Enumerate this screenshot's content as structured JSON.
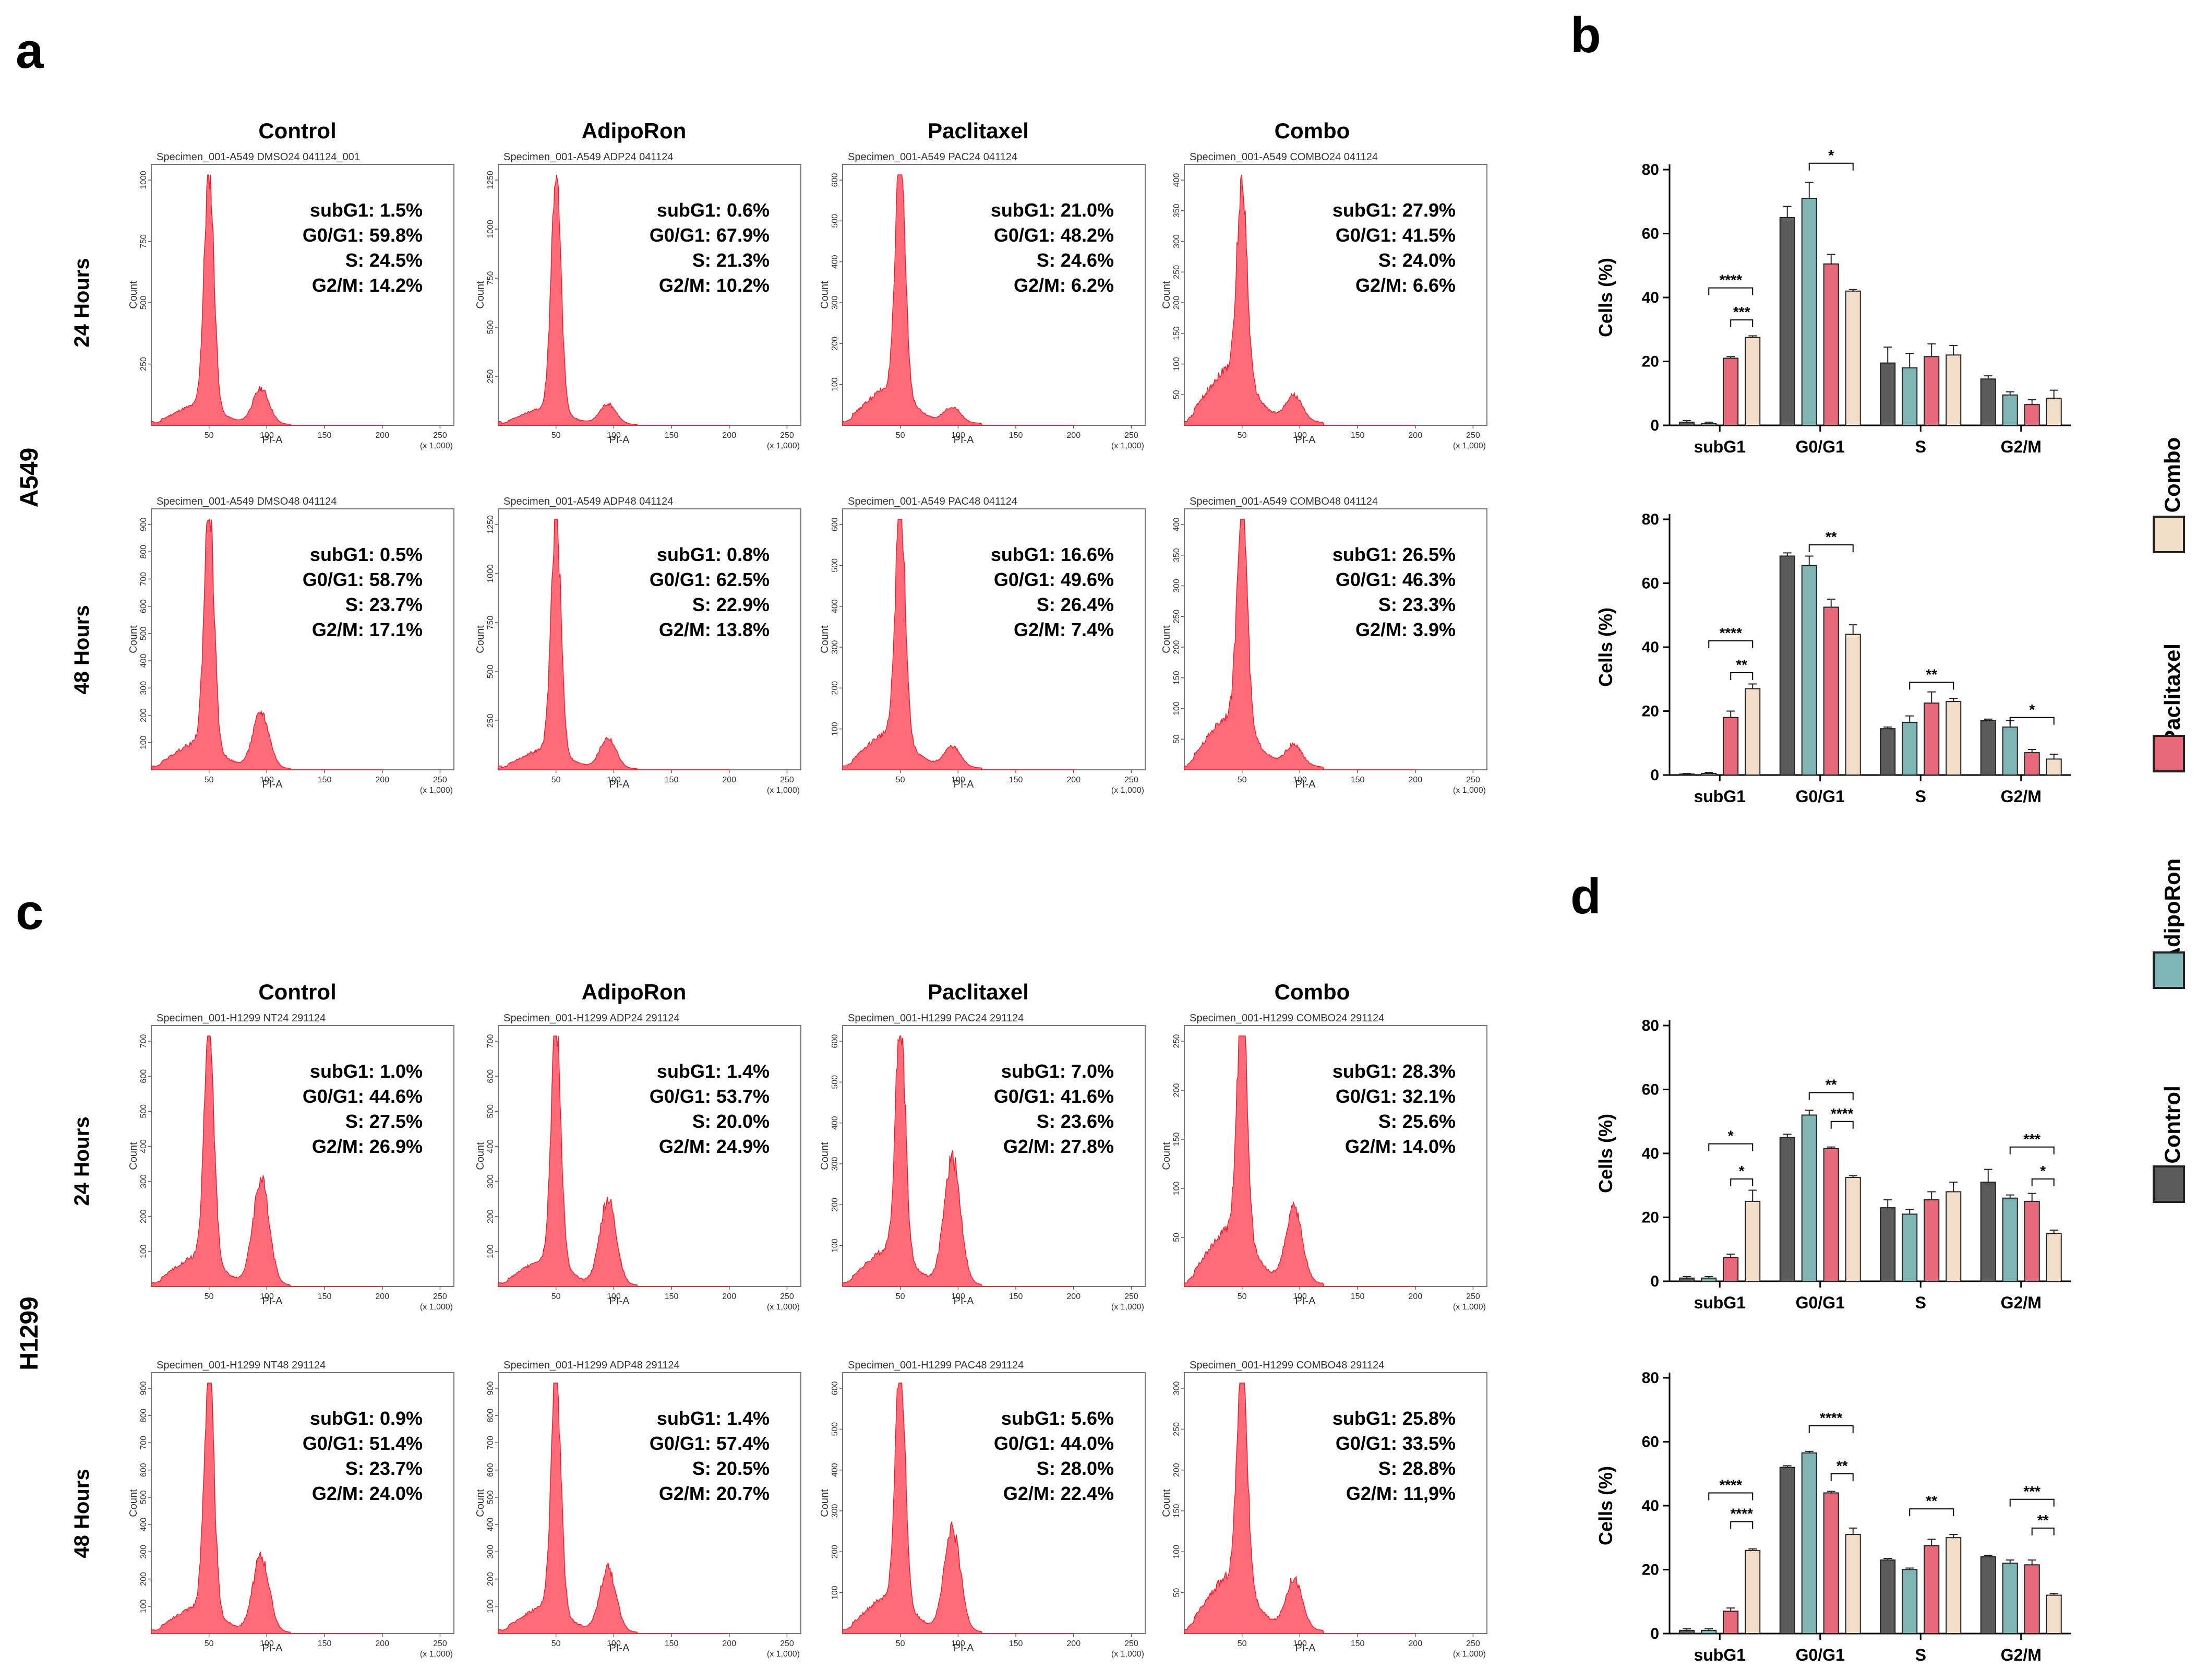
{
  "figure": {
    "panel_letters": [
      "a",
      "b",
      "c",
      "d"
    ],
    "columns": [
      "Control",
      "AdipoRon",
      "Paclitaxel",
      "Combo"
    ],
    "time_labels": [
      "24 Hours",
      "48 Hours"
    ],
    "cell_lines": [
      "A549",
      "H1299"
    ],
    "hist_axis": {
      "xlabel": "PI-A",
      "xscale": "(x 1,000)",
      "ylabel": "Count",
      "xticks": [
        "50",
        "100",
        "150",
        "200",
        "250"
      ]
    },
    "stat_labels": [
      "subG1",
      "G0/G1",
      "S",
      "G2/M"
    ]
  },
  "chart_data": {
    "histograms": [
      {
        "cell_line": "A549",
        "time": "24 Hours",
        "condition": "Control",
        "specimen": "Specimen_001-A549 DMSO24 041124_001",
        "ymax": 1000,
        "yticks": [
          250,
          500,
          750,
          1000
        ],
        "stats": [
          "1.5%",
          "59.8%",
          "24.5%",
          "14.2%"
        ],
        "g1_peak": 0.95,
        "g2_peak": 0.14,
        "spread": 0.3
      },
      {
        "cell_line": "A549",
        "time": "24 Hours",
        "condition": "AdipoRon",
        "specimen": "Specimen_001-A549 ADP24 041124",
        "ymax": 1250,
        "yticks": [
          250,
          500,
          750,
          1000,
          1250
        ],
        "stats": [
          "0.6%",
          "67.9%",
          "21.3%",
          "10.2%"
        ],
        "g1_peak": 0.95,
        "g2_peak": 0.08,
        "spread": 0.25
      },
      {
        "cell_line": "A549",
        "time": "24 Hours",
        "condition": "Paclitaxel",
        "specimen": "Specimen_001-A549 PAC24 041124",
        "ymax": 600,
        "yticks": [
          100,
          200,
          300,
          400,
          500,
          600
        ],
        "stats": [
          "21.0%",
          "48.2%",
          "24.6%",
          "6.2%"
        ],
        "g1_peak": 0.95,
        "g2_peak": 0.06,
        "spread": 0.55
      },
      {
        "cell_line": "A549",
        "time": "24 Hours",
        "condition": "Combo",
        "specimen": "Specimen_001-A549 COMBO24 041124",
        "ymax": 400,
        "yticks": [
          50,
          100,
          150,
          200,
          250,
          300,
          350,
          400
        ],
        "stats": [
          "27.9%",
          "41.5%",
          "24.0%",
          "6.6%"
        ],
        "g1_peak": 0.78,
        "g2_peak": 0.1,
        "spread": 0.85
      },
      {
        "cell_line": "A549",
        "time": "48 Hours",
        "condition": "Control",
        "specimen": "Specimen_001-A549 DMSO48 041124",
        "ymax": 900,
        "yticks": [
          100,
          200,
          300,
          400,
          500,
          600,
          700,
          800,
          900
        ],
        "stats": [
          "0.5%",
          "58.7%",
          "23.7%",
          "17.1%"
        ],
        "g1_peak": 0.97,
        "g2_peak": 0.22,
        "spread": 0.4
      },
      {
        "cell_line": "A549",
        "time": "48 Hours",
        "condition": "AdipoRon",
        "specimen": "Specimen_001-A549 ADP48 041124",
        "ymax": 1250,
        "yticks": [
          250,
          500,
          750,
          1000,
          1250
        ],
        "stats": [
          "0.8%",
          "62.5%",
          "22.9%",
          "13.8%"
        ],
        "g1_peak": 0.95,
        "g2_peak": 0.12,
        "spread": 0.3
      },
      {
        "cell_line": "A549",
        "time": "48 Hours",
        "condition": "Paclitaxel",
        "specimen": "Specimen_001-A549 PAC48 041124",
        "ymax": 600,
        "yticks": [
          100,
          200,
          300,
          400,
          500,
          600
        ],
        "stats": [
          "16.6%",
          "49.6%",
          "26.4%",
          "7.4%"
        ],
        "g1_peak": 0.95,
        "g2_peak": 0.08,
        "spread": 0.55
      },
      {
        "cell_line": "A549",
        "time": "48 Hours",
        "condition": "Combo",
        "specimen": "Specimen_001-A549 COMBO48 041124",
        "ymax": 400,
        "yticks": [
          50,
          100,
          150,
          200,
          250,
          300,
          350,
          400
        ],
        "stats": [
          "26.5%",
          "46.3%",
          "23.3%",
          "3.9%"
        ],
        "g1_peak": 0.92,
        "g2_peak": 0.08,
        "spread": 0.8
      },
      {
        "cell_line": "H1299",
        "time": "24 Hours",
        "condition": "Control",
        "specimen": "Specimen_001-H1299 NT24 291124",
        "ymax": 700,
        "yticks": [
          100,
          200,
          300,
          400,
          500,
          600,
          700
        ],
        "stats": [
          "1.0%",
          "44.6%",
          "27.5%",
          "26.9%"
        ],
        "g1_peak": 0.95,
        "g2_peak": 0.42,
        "spread": 0.45
      },
      {
        "cell_line": "H1299",
        "time": "24 Hours",
        "condition": "AdipoRon",
        "specimen": "Specimen_001-H1299 ADP24 291124",
        "ymax": 700,
        "yticks": [
          100,
          200,
          300,
          400,
          500,
          600,
          700
        ],
        "stats": [
          "1.4%",
          "53.7%",
          "20.0%",
          "24.9%"
        ],
        "g1_peak": 0.95,
        "g2_peak": 0.34,
        "spread": 0.4
      },
      {
        "cell_line": "H1299",
        "time": "24 Hours",
        "condition": "Paclitaxel",
        "specimen": "Specimen_001-H1299 PAC24 291124",
        "ymax": 600,
        "yticks": [
          100,
          200,
          300,
          400,
          500,
          600
        ],
        "stats": [
          "7.0%",
          "41.6%",
          "23.6%",
          "27.8%"
        ],
        "g1_peak": 0.95,
        "g2_peak": 0.5,
        "spread": 0.55
      },
      {
        "cell_line": "H1299",
        "time": "24 Hours",
        "condition": "Combo",
        "specimen": "Specimen_001-H1299 COMBO24 291124",
        "ymax": 250,
        "yticks": [
          50,
          100,
          150,
          200,
          250
        ],
        "stats": [
          "28.3%",
          "32.1%",
          "25.6%",
          "14.0%"
        ],
        "g1_peak": 0.96,
        "g2_peak": 0.3,
        "spread": 0.85
      },
      {
        "cell_line": "H1299",
        "time": "48 Hours",
        "condition": "Control",
        "specimen": "Specimen_001-H1299 NT48 291124",
        "ymax": 900,
        "yticks": [
          100,
          200,
          300,
          400,
          500,
          600,
          700,
          800,
          900
        ],
        "stats": [
          "0.9%",
          "51.4%",
          "23.7%",
          "24.0%"
        ],
        "g1_peak": 0.97,
        "g2_peak": 0.3,
        "spread": 0.4
      },
      {
        "cell_line": "H1299",
        "time": "48 Hours",
        "condition": "AdipoRon",
        "specimen": "Specimen_001-H1299 ADP48 291124",
        "ymax": 900,
        "yticks": [
          100,
          200,
          300,
          400,
          500,
          600,
          700,
          800,
          900
        ],
        "stats": [
          "1.4%",
          "57.4%",
          "20.5%",
          "20.7%"
        ],
        "g1_peak": 0.95,
        "g2_peak": 0.25,
        "spread": 0.4
      },
      {
        "cell_line": "H1299",
        "time": "48 Hours",
        "condition": "Paclitaxel",
        "specimen": "Specimen_001-H1299 PAC48 291124",
        "ymax": 600,
        "yticks": [
          100,
          200,
          300,
          400,
          500,
          600
        ],
        "stats": [
          "5.6%",
          "44.0%",
          "28.0%",
          "22.4%"
        ],
        "g1_peak": 0.96,
        "g2_peak": 0.4,
        "spread": 0.55
      },
      {
        "cell_line": "H1299",
        "time": "48 Hours",
        "condition": "Combo",
        "specimen": "Specimen_001-H1299 COMBO48 291124",
        "ymax": 300,
        "yticks": [
          50,
          100,
          150,
          200,
          250,
          300
        ],
        "stats": [
          "25.8%",
          "33.5%",
          "28.8%",
          "11,9%"
        ],
        "g1_peak": 0.95,
        "g2_peak": 0.2,
        "spread": 0.85
      }
    ],
    "bar_charts": [
      {
        "panel": "b",
        "cell_line": "A549",
        "time": "24 Hours",
        "type": "bar",
        "ylabel": "Cells (%)",
        "ylim": [
          0,
          80
        ],
        "yticks": [
          0,
          20,
          40,
          60,
          80
        ],
        "categories": [
          "subG1",
          "G0/G1",
          "S",
          "G2/M"
        ],
        "series": [
          {
            "name": "Control",
            "values": [
              1,
              65,
              19.5,
              14.5
            ],
            "errors": [
              0.5,
              3.5,
              5,
              1
            ]
          },
          {
            "name": "AdipoRon",
            "values": [
              0.5,
              71,
              18,
              9.5
            ],
            "errors": [
              0.5,
              5,
              4.5,
              1
            ]
          },
          {
            "name": "Paclitaxel",
            "values": [
              21,
              50.5,
              21.5,
              6.5
            ],
            "errors": [
              0.5,
              3,
              4,
              1.5
            ]
          },
          {
            "name": "Combo",
            "values": [
              27.5,
              42,
              22,
              8.5
            ],
            "errors": [
              0.5,
              0.5,
              3,
              2.5
            ]
          }
        ],
        "significance": [
          {
            "cat": 0,
            "from": 1,
            "to": 3,
            "label": "****",
            "y": 43
          },
          {
            "cat": 0,
            "from": 2,
            "to": 3,
            "label": "***",
            "y": 33
          },
          {
            "cat": 1,
            "from": 1,
            "to": 3,
            "label": "*",
            "y": 82
          }
        ]
      },
      {
        "panel": "b",
        "cell_line": "A549",
        "time": "48 Hours",
        "type": "bar",
        "ylabel": "Cells (%)",
        "ylim": [
          0,
          80
        ],
        "yticks": [
          0,
          20,
          40,
          60,
          80
        ],
        "categories": [
          "subG1",
          "G0/G1",
          "S",
          "G2/M"
        ],
        "series": [
          {
            "name": "Control",
            "values": [
              0.3,
              68.5,
              14.5,
              17
            ],
            "errors": [
              0.2,
              1,
              0.5,
              0.5
            ]
          },
          {
            "name": "AdipoRon",
            "values": [
              0.5,
              65.5,
              16.5,
              15
            ],
            "errors": [
              0.3,
              3,
              2,
              2
            ]
          },
          {
            "name": "Paclitaxel",
            "values": [
              18,
              52.5,
              22.5,
              7
            ],
            "errors": [
              2,
              2.5,
              3.5,
              1
            ]
          },
          {
            "name": "Combo",
            "values": [
              27,
              44,
              23,
              5
            ],
            "errors": [
              1.5,
              3,
              1,
              1.5
            ]
          }
        ],
        "significance": [
          {
            "cat": 0,
            "from": 1,
            "to": 3,
            "label": "****",
            "y": 42
          },
          {
            "cat": 0,
            "from": 2,
            "to": 3,
            "label": "**",
            "y": 32
          },
          {
            "cat": 1,
            "from": 1,
            "to": 3,
            "label": "**",
            "y": 72
          },
          {
            "cat": 2,
            "from": 1,
            "to": 3,
            "label": "**",
            "y": 29
          },
          {
            "cat": 3,
            "from": 1,
            "to": 3,
            "label": "*",
            "y": 18
          }
        ]
      },
      {
        "panel": "d",
        "cell_line": "H1299",
        "time": "24 Hours",
        "type": "bar",
        "ylabel": "Cells (%)",
        "ylim": [
          0,
          80
        ],
        "yticks": [
          0,
          20,
          40,
          60,
          80
        ],
        "categories": [
          "subG1",
          "G0/G1",
          "S",
          "G2/M"
        ],
        "series": [
          {
            "name": "Control",
            "values": [
              1,
              45,
              23,
              31
            ],
            "errors": [
              0.5,
              1,
              2.5,
              4
            ]
          },
          {
            "name": "AdipoRon",
            "values": [
              1,
              52,
              21,
              26
            ],
            "errors": [
              0.5,
              1.5,
              1.5,
              1
            ]
          },
          {
            "name": "Paclitaxel",
            "values": [
              7.5,
              41.5,
              25.5,
              25
            ],
            "errors": [
              1,
              0.5,
              2.5,
              2.5
            ]
          },
          {
            "name": "Combo",
            "values": [
              25,
              32.5,
              28,
              15
            ],
            "errors": [
              3.5,
              0.5,
              3,
              1
            ]
          }
        ],
        "significance": [
          {
            "cat": 0,
            "from": 1,
            "to": 3,
            "label": "*",
            "y": 43
          },
          {
            "cat": 0,
            "from": 2,
            "to": 3,
            "label": "*",
            "y": 32
          },
          {
            "cat": 1,
            "from": 1,
            "to": 3,
            "label": "**",
            "y": 59
          },
          {
            "cat": 1,
            "from": 2,
            "to": 3,
            "label": "****",
            "y": 50
          },
          {
            "cat": 3,
            "from": 1,
            "to": 3,
            "label": "***",
            "y": 42
          },
          {
            "cat": 3,
            "from": 2,
            "to": 3,
            "label": "*",
            "y": 32
          }
        ]
      },
      {
        "panel": "d",
        "cell_line": "H1299",
        "time": "48 Hours",
        "type": "bar",
        "ylabel": "Cells (%)",
        "ylim": [
          0,
          80
        ],
        "yticks": [
          0,
          20,
          40,
          60,
          80
        ],
        "categories": [
          "subG1",
          "G0/G1",
          "S",
          "G2/M"
        ],
        "series": [
          {
            "name": "Control",
            "values": [
              1,
              52,
              23,
              24
            ],
            "errors": [
              0.5,
              0.5,
              0.5,
              0.5
            ]
          },
          {
            "name": "AdipoRon",
            "values": [
              1,
              56.5,
              20,
              22
            ],
            "errors": [
              0.5,
              0.5,
              0.5,
              1
            ]
          },
          {
            "name": "Paclitaxel",
            "values": [
              7,
              44,
              27.5,
              21.5
            ],
            "errors": [
              1,
              0.5,
              2,
              1.5
            ]
          },
          {
            "name": "Combo",
            "values": [
              26,
              31,
              30,
              12
            ],
            "errors": [
              0.5,
              2,
              1,
              0.5
            ]
          }
        ],
        "significance": [
          {
            "cat": 0,
            "from": 1,
            "to": 3,
            "label": "****",
            "y": 44
          },
          {
            "cat": 0,
            "from": 2,
            "to": 3,
            "label": "****",
            "y": 35
          },
          {
            "cat": 1,
            "from": 1,
            "to": 3,
            "label": "****",
            "y": 65
          },
          {
            "cat": 1,
            "from": 2,
            "to": 3,
            "label": "**",
            "y": 50
          },
          {
            "cat": 2,
            "from": 1,
            "to": 3,
            "label": "**",
            "y": 39
          },
          {
            "cat": 3,
            "from": 1,
            "to": 3,
            "label": "***",
            "y": 42
          },
          {
            "cat": 3,
            "from": 2,
            "to": 3,
            "label": "**",
            "y": 33
          }
        ]
      }
    ],
    "legend": [
      {
        "name": "Combo",
        "color": "#f2ddc9"
      },
      {
        "name": "Paclitaxel",
        "color": "#e66a7a"
      },
      {
        "name": "AdipoRon",
        "color": "#7fb5b5"
      },
      {
        "name": "Control",
        "color": "#5a5a5a"
      }
    ],
    "histogram_color": "#ff6b78",
    "histogram_edge": "#e8202e"
  }
}
